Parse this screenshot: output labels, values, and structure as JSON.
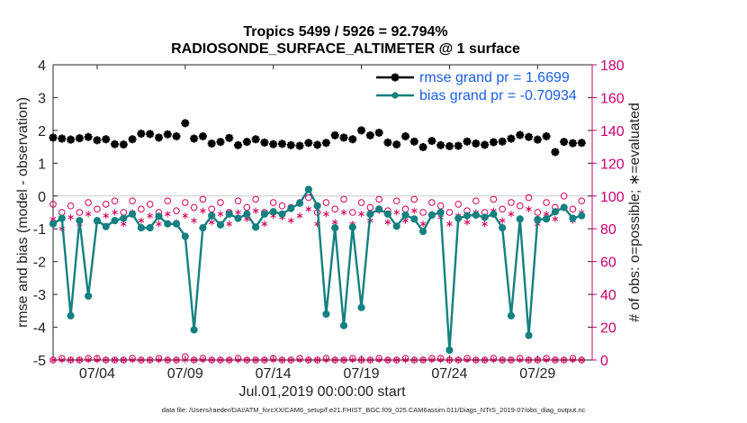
{
  "chart_data": {
    "type": "line",
    "title_line1": "Tropics 5499 / 5926 = 92.794%",
    "title_line2": "RADIOSONDE_SURFACE_ALTIMETER @ 1 surface",
    "xlabel": "Jul.01,2019 00:00:00 start",
    "ylabel_left": "rmse and bias (model - observation)",
    "ylabel_right": "# of obs: o=possible; ∗=evaluated",
    "footer": "data file: /Users/raeder/DAI/ATM_forcXX/CAM6_setup/f.e21.FHIST_BGC.f09_025.CAM6assim.011/Diags_NTrS_2019-07/obs_diag_output.nc",
    "xlim": [
      1.5,
      32.1
    ],
    "ylim_left": [
      -5,
      4
    ],
    "ylim_right": [
      0,
      180
    ],
    "xtick_days": [
      4,
      9,
      14,
      19,
      24,
      29
    ],
    "xtick_labels": [
      "07/04",
      "07/09",
      "07/14",
      "07/19",
      "07/24",
      "07/29"
    ],
    "ytick_left": [
      -5,
      -4,
      -3,
      -2,
      -1,
      0,
      1,
      2,
      3,
      4
    ],
    "ytick_right": [
      0,
      20,
      40,
      60,
      80,
      100,
      120,
      140,
      160,
      180
    ],
    "grid": false,
    "legend_position": "top-right",
    "series": [
      {
        "name": "rmse grand pr = 1.6699",
        "axis": "left",
        "color": "#000000",
        "marker": "star",
        "line": false,
        "x": [
          1.5,
          2.0,
          2.5,
          3.0,
          3.5,
          4.0,
          4.5,
          5.0,
          5.5,
          6.0,
          6.5,
          7.0,
          7.5,
          8.0,
          8.5,
          9.0,
          9.5,
          10.0,
          10.5,
          11.0,
          11.5,
          12.0,
          12.5,
          13.0,
          13.5,
          14.0,
          14.5,
          15.0,
          15.5,
          16.0,
          16.5,
          17.0,
          17.5,
          18.0,
          18.5,
          19.0,
          19.5,
          20.0,
          20.5,
          21.0,
          21.5,
          22.0,
          22.5,
          23.0,
          23.5,
          24.0,
          24.5,
          25.0,
          25.5,
          26.0,
          26.5,
          27.0,
          27.5,
          28.0,
          28.5,
          29.0,
          29.5,
          30.0,
          30.5,
          31.0,
          31.5
        ],
        "y": [
          1.78,
          1.75,
          1.72,
          1.76,
          1.8,
          1.7,
          1.73,
          1.58,
          1.57,
          1.73,
          1.9,
          1.89,
          1.78,
          1.88,
          1.82,
          2.22,
          1.75,
          1.82,
          1.6,
          1.65,
          1.77,
          1.55,
          1.65,
          1.73,
          1.63,
          1.58,
          1.59,
          1.55,
          1.53,
          1.62,
          1.56,
          1.62,
          1.85,
          1.78,
          1.73,
          2.0,
          1.85,
          1.93,
          1.63,
          1.57,
          1.82,
          1.66,
          1.49,
          1.68,
          1.55,
          1.52,
          1.53,
          1.66,
          1.6,
          1.56,
          1.64,
          1.66,
          1.75,
          1.86,
          1.8,
          1.72,
          1.82,
          1.34,
          1.65,
          1.61,
          1.62
        ]
      },
      {
        "name": "bias grand pr = -0.70934",
        "axis": "left",
        "color": "#148080",
        "marker": "circle",
        "line": true,
        "x": [
          1.5,
          2.0,
          2.5,
          3.0,
          3.5,
          4.0,
          4.5,
          5.0,
          5.5,
          6.0,
          6.5,
          7.0,
          7.5,
          8.0,
          8.5,
          9.0,
          9.5,
          10.0,
          10.5,
          11.0,
          11.5,
          12.0,
          12.5,
          13.0,
          13.5,
          14.0,
          14.5,
          15.0,
          15.5,
          16.0,
          16.5,
          17.0,
          17.5,
          18.0,
          18.5,
          19.0,
          19.5,
          20.0,
          20.5,
          21.0,
          21.5,
          22.0,
          22.5,
          23.0,
          23.5,
          24.0,
          24.5,
          25.0,
          25.5,
          26.0,
          26.5,
          27.0,
          27.5,
          28.0,
          28.5,
          29.0,
          29.5,
          30.0,
          30.5,
          31.0,
          31.5
        ],
        "y": [
          -0.85,
          -0.68,
          -3.65,
          -0.75,
          -3.05,
          -0.75,
          -0.93,
          -0.75,
          -0.68,
          -0.55,
          -0.97,
          -0.97,
          -0.62,
          -0.85,
          -0.85,
          -1.23,
          -4.08,
          -0.97,
          -0.6,
          -0.88,
          -0.55,
          -0.68,
          -0.55,
          -0.95,
          -0.55,
          -0.48,
          -0.55,
          -0.38,
          -0.22,
          0.2,
          -0.3,
          -3.6,
          -0.97,
          -3.95,
          -0.95,
          -3.4,
          -0.55,
          -0.4,
          -0.55,
          -0.92,
          -0.58,
          -0.7,
          -1.08,
          -0.58,
          -0.5,
          -4.7,
          -0.68,
          -0.6,
          -0.58,
          -0.65,
          -0.55,
          -0.97,
          -3.65,
          -0.7,
          -4.25,
          -0.72,
          -0.7,
          -0.48,
          -0.35,
          -0.68,
          -0.6
        ]
      },
      {
        "name": "possible",
        "axis": "right",
        "color": "#d0005a",
        "marker": "open-circle",
        "line": false,
        "x": [
          1.5,
          2.0,
          2.5,
          3.0,
          3.5,
          4.0,
          4.5,
          5.0,
          5.5,
          6.0,
          6.5,
          7.0,
          7.5,
          8.0,
          8.5,
          9.0,
          9.5,
          10.0,
          10.5,
          11.0,
          11.5,
          12.0,
          12.5,
          13.0,
          13.5,
          14.0,
          14.5,
          15.0,
          15.5,
          16.0,
          16.5,
          17.0,
          17.5,
          18.0,
          18.5,
          19.0,
          19.5,
          20.0,
          20.5,
          21.0,
          21.5,
          22.0,
          22.5,
          23.0,
          23.5,
          24.0,
          24.5,
          25.0,
          25.5,
          26.0,
          26.5,
          27.0,
          27.5,
          28.0,
          28.5,
          29.0,
          29.5,
          30.0,
          30.5,
          31.0,
          31.5
        ],
        "y": [
          95,
          90,
          94,
          90,
          96,
          92,
          95,
          97,
          90,
          97,
          92,
          95,
          90,
          97,
          91,
          96,
          93,
          98,
          92,
          96,
          90,
          97,
          93,
          98,
          90,
          96,
          94,
          93,
          96,
          99,
          90,
          96,
          92,
          98,
          90,
          96,
          93,
          98,
          91,
          97,
          92,
          98,
          90,
          96,
          94,
          90,
          95,
          91,
          97,
          90,
          98,
          92,
          96,
          94,
          99,
          90,
          96,
          93,
          100,
          92,
          97
        ]
      },
      {
        "name": "evaluated",
        "axis": "right",
        "color": "#d0005a",
        "marker": "asterisk",
        "line": false,
        "x": [
          1.5,
          2.0,
          2.5,
          3.0,
          3.5,
          4.0,
          4.5,
          5.0,
          5.5,
          6.0,
          6.5,
          7.0,
          7.5,
          8.0,
          8.5,
          9.0,
          9.5,
          10.0,
          10.5,
          11.0,
          11.5,
          12.0,
          12.5,
          13.0,
          13.5,
          14.0,
          14.5,
          15.0,
          15.5,
          16.0,
          16.5,
          17.0,
          17.5,
          18.0,
          18.5,
          19.0,
          19.5,
          20.0,
          20.5,
          21.0,
          21.5,
          22.0,
          22.5,
          23.0,
          23.5,
          24.0,
          24.5,
          25.0,
          25.5,
          26.0,
          26.5,
          27.0,
          27.5,
          28.0,
          28.5,
          29.0,
          29.5,
          30.0,
          30.5,
          31.0,
          31.5
        ],
        "y": [
          86,
          80,
          87,
          83,
          89,
          84,
          88,
          90,
          83,
          90,
          85,
          88,
          83,
          89,
          84,
          88,
          85,
          91,
          84,
          89,
          83,
          90,
          86,
          91,
          83,
          88,
          87,
          85,
          88,
          92,
          83,
          89,
          84,
          90,
          83,
          89,
          85,
          91,
          84,
          90,
          85,
          91,
          83,
          89,
          87,
          83,
          88,
          84,
          90,
          83,
          91,
          85,
          89,
          86,
          92,
          83,
          89,
          86,
          93,
          85,
          90
        ]
      },
      {
        "name": "possible-zero",
        "axis": "right",
        "color": "#d0005a",
        "marker": "open-circle",
        "line": false,
        "x": [
          1.5,
          2.0,
          2.5,
          3.0,
          3.5,
          4.0,
          4.5,
          5.0,
          5.5,
          6.0,
          6.5,
          7.0,
          7.5,
          8.0,
          8.5,
          9.0,
          9.5,
          10.0,
          10.5,
          11.0,
          11.5,
          12.0,
          12.5,
          13.0,
          13.5,
          14.0,
          14.5,
          15.0,
          15.5,
          16.0,
          16.5,
          17.0,
          17.5,
          18.0,
          18.5,
          19.0,
          19.5,
          20.0,
          20.5,
          21.0,
          21.5,
          22.0,
          22.5,
          23.0,
          23.5,
          24.0,
          24.5,
          25.0,
          25.5,
          26.0,
          26.5,
          27.0,
          27.5,
          28.0,
          28.5,
          29.0,
          29.5,
          30.0,
          30.5,
          31.0,
          31.5
        ],
        "y": [
          0,
          1,
          0,
          0,
          1,
          1,
          0,
          0,
          0,
          1,
          0,
          0,
          1,
          0,
          0,
          2,
          0,
          1,
          0,
          0,
          0,
          1,
          0,
          0,
          0,
          1,
          0,
          0,
          1,
          0,
          0,
          1,
          0,
          0,
          1,
          0,
          0,
          1,
          0,
          0,
          1,
          0,
          0,
          1,
          1,
          0,
          0,
          1,
          0,
          0,
          1,
          0,
          0,
          1,
          0,
          0,
          1,
          0,
          0,
          1,
          0
        ]
      },
      {
        "name": "evaluated-zero",
        "axis": "right",
        "color": "#d0005a",
        "marker": "asterisk",
        "line": false,
        "x": [
          1.5,
          2.0,
          2.5,
          3.0,
          3.5,
          4.0,
          4.5,
          5.0,
          5.5,
          6.0,
          6.5,
          7.0,
          7.5,
          8.0,
          8.5,
          9.0,
          9.5,
          10.0,
          10.5,
          11.0,
          11.5,
          12.0,
          12.5,
          13.0,
          13.5,
          14.0,
          14.5,
          15.0,
          15.5,
          16.0,
          16.5,
          17.0,
          17.5,
          18.0,
          18.5,
          19.0,
          19.5,
          20.0,
          20.5,
          21.0,
          21.5,
          22.0,
          22.5,
          23.0,
          23.5,
          24.0,
          24.5,
          25.0,
          25.5,
          26.0,
          26.5,
          27.0,
          27.5,
          28.0,
          28.5,
          29.0,
          29.5,
          30.0,
          30.5,
          31.0,
          31.5
        ],
        "y": [
          0,
          0,
          0,
          0,
          0,
          0,
          0,
          0,
          0,
          0,
          0,
          0,
          0,
          0,
          0,
          0,
          0,
          0,
          0,
          0,
          0,
          0,
          0,
          0,
          0,
          0,
          0,
          0,
          0,
          0,
          0,
          0,
          0,
          0,
          0,
          0,
          0,
          0,
          0,
          0,
          0,
          0,
          0,
          0,
          0,
          0,
          0,
          0,
          0,
          0,
          0,
          0,
          0,
          0,
          0,
          0,
          0,
          0,
          0,
          0,
          0
        ]
      }
    ],
    "legend": [
      {
        "label": "rmse grand pr = 1.6699",
        "series": 0
      },
      {
        "label": "bias grand pr = -0.70934",
        "series": 1
      }
    ]
  }
}
